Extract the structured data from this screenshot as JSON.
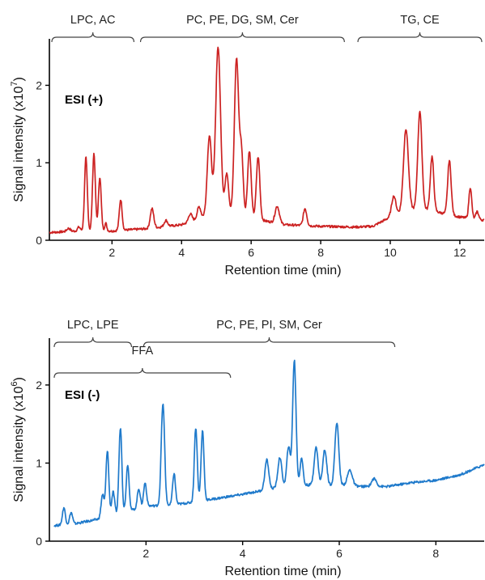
{
  "chart_data": [
    {
      "type": "line",
      "mode_label": "ESI (+)",
      "color": "#cc2222",
      "xlabel": "Retention time (min)",
      "ylabel_main": "Signal intensity (x10",
      "ylabel_exp": "7",
      "ylabel_close": ")",
      "xlim": [
        0.2,
        12.7
      ],
      "ylim": [
        0,
        2.6
      ],
      "xticks": [
        2,
        4,
        6,
        8,
        10,
        12
      ],
      "yticks": [
        0,
        1,
        2
      ],
      "brackets": [
        {
          "label": "LPC, AC",
          "x_start": 0.2,
          "x_end": 2.7
        },
        {
          "label": "PC, PE, DG, SM, Cer",
          "x_start": 2.75,
          "x_end": 8.75
        },
        {
          "label": "TG, CE",
          "x_start": 9.0,
          "x_end": 12.7
        }
      ],
      "series": [
        {
          "baseline": [
            [
              0.2,
              0.1
            ],
            [
              1.0,
              0.12
            ],
            [
              2.0,
              0.12
            ],
            [
              3.0,
              0.15
            ],
            [
              4.0,
              0.2
            ],
            [
              4.6,
              0.3
            ],
            [
              5.0,
              0.4
            ],
            [
              5.5,
              0.35
            ],
            [
              6.0,
              0.3
            ],
            [
              6.4,
              0.25
            ],
            [
              7.0,
              0.2
            ],
            [
              8.0,
              0.18
            ],
            [
              9.0,
              0.17
            ],
            [
              9.5,
              0.18
            ],
            [
              10.0,
              0.3
            ],
            [
              10.5,
              0.4
            ],
            [
              11.0,
              0.4
            ],
            [
              11.5,
              0.35
            ],
            [
              12.0,
              0.3
            ],
            [
              12.7,
              0.26
            ]
          ],
          "peaks": [
            [
              0.75,
              0.05,
              0.04
            ],
            [
              1.05,
              0.04,
              0.05
            ],
            [
              1.25,
              0.04,
              0.95
            ],
            [
              1.48,
              0.04,
              1.0
            ],
            [
              1.65,
              0.04,
              0.7
            ],
            [
              1.82,
              0.03,
              0.1
            ],
            [
              2.25,
              0.04,
              0.4
            ],
            [
              3.15,
              0.05,
              0.25
            ],
            [
              3.55,
              0.05,
              0.08
            ],
            [
              4.25,
              0.05,
              0.1
            ],
            [
              4.5,
              0.05,
              0.15
            ],
            [
              4.8,
              0.06,
              1.0
            ],
            [
              5.05,
              0.07,
              2.1
            ],
            [
              5.3,
              0.05,
              0.5
            ],
            [
              5.58,
              0.06,
              2.0
            ],
            [
              5.72,
              0.05,
              0.8
            ],
            [
              5.95,
              0.05,
              0.85
            ],
            [
              6.2,
              0.05,
              0.8
            ],
            [
              6.75,
              0.06,
              0.22
            ],
            [
              7.55,
              0.05,
              0.22
            ],
            [
              10.1,
              0.06,
              0.25
            ],
            [
              10.45,
              0.07,
              1.05
            ],
            [
              10.85,
              0.06,
              1.27
            ],
            [
              11.2,
              0.05,
              0.7
            ],
            [
              11.7,
              0.05,
              0.7
            ],
            [
              12.3,
              0.04,
              0.4
            ],
            [
              12.5,
              0.04,
              0.1
            ]
          ]
        }
      ]
    },
    {
      "type": "line",
      "mode_label": "ESI (-)",
      "color": "#1f7acb",
      "xlabel": "Retention time (min)",
      "ylabel_main": "Signal intensity (x10",
      "ylabel_exp": "6",
      "ylabel_close": ")",
      "xlim": [
        0.0,
        9.0
      ],
      "ylim": [
        0,
        2.6
      ],
      "xticks": [
        2,
        4,
        6,
        8
      ],
      "yticks": [
        0,
        1,
        2
      ],
      "brackets": [
        {
          "label": "LPC, LPE",
          "x_start": 0.05,
          "x_end": 1.75,
          "row": 0
        },
        {
          "label": "PC, PE, PI, SM, Cer",
          "x_start": 1.9,
          "x_end": 7.2,
          "row": 0
        },
        {
          "label": "FFA",
          "x_start": 0.05,
          "x_end": 3.8,
          "row": 1
        }
      ],
      "series": [
        {
          "baseline": [
            [
              0.1,
              0.2
            ],
            [
              0.5,
              0.22
            ],
            [
              1.0,
              0.28
            ],
            [
              1.5,
              0.36
            ],
            [
              2.0,
              0.45
            ],
            [
              2.5,
              0.46
            ],
            [
              3.0,
              0.5
            ],
            [
              3.5,
              0.55
            ],
            [
              4.0,
              0.6
            ],
            [
              4.5,
              0.66
            ],
            [
              5.0,
              0.72
            ],
            [
              5.5,
              0.72
            ],
            [
              6.0,
              0.72
            ],
            [
              6.5,
              0.7
            ],
            [
              7.0,
              0.7
            ],
            [
              7.5,
              0.75
            ],
            [
              8.0,
              0.78
            ],
            [
              8.5,
              0.85
            ],
            [
              9.0,
              0.98
            ]
          ],
          "peaks": [
            [
              0.3,
              0.03,
              0.22
            ],
            [
              0.45,
              0.03,
              0.15
            ],
            [
              1.1,
              0.03,
              0.3
            ],
            [
              1.2,
              0.03,
              0.85
            ],
            [
              1.32,
              0.03,
              0.3
            ],
            [
              1.47,
              0.03,
              1.1
            ],
            [
              1.62,
              0.03,
              0.6
            ],
            [
              1.85,
              0.03,
              0.25
            ],
            [
              1.98,
              0.03,
              0.3
            ],
            [
              2.35,
              0.035,
              1.3
            ],
            [
              2.58,
              0.03,
              0.4
            ],
            [
              3.03,
              0.03,
              0.95
            ],
            [
              3.17,
              0.03,
              0.9
            ],
            [
              4.5,
              0.04,
              0.38
            ],
            [
              4.77,
              0.04,
              0.38
            ],
            [
              4.95,
              0.035,
              0.5
            ],
            [
              5.07,
              0.035,
              1.6
            ],
            [
              5.22,
              0.03,
              0.35
            ],
            [
              5.52,
              0.04,
              0.48
            ],
            [
              5.7,
              0.04,
              0.45
            ],
            [
              5.95,
              0.04,
              0.8
            ],
            [
              6.22,
              0.05,
              0.2
            ],
            [
              6.72,
              0.05,
              0.1
            ]
          ]
        }
      ]
    }
  ]
}
